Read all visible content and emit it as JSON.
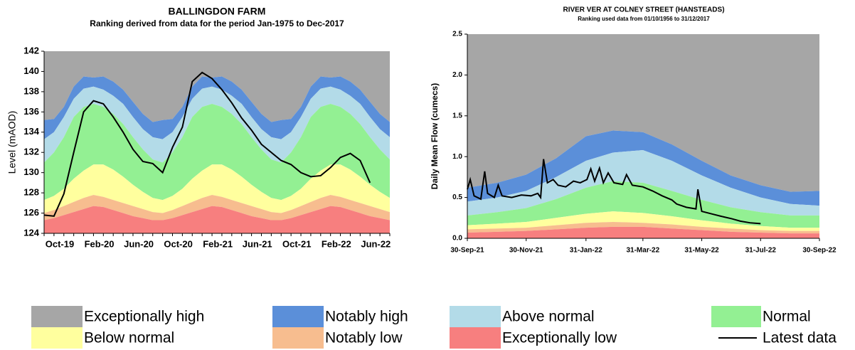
{
  "legend": {
    "bands": [
      {
        "name": "Exceptionally high",
        "color": "#a6a6a6"
      },
      {
        "name": "Notably high",
        "color": "#5b8fd9"
      },
      {
        "name": "Above normal",
        "color": "#b3dbe8"
      },
      {
        "name": "Normal",
        "color": "#93f093"
      },
      {
        "name": "Below normal",
        "color": "#ffff9e"
      },
      {
        "name": "Notably low",
        "color": "#f7bd8f"
      },
      {
        "name": "Exceptionally low",
        "color": "#f77f7f"
      }
    ],
    "line": {
      "name": "Latest data",
      "color": "#000000"
    }
  },
  "chart_data": [
    {
      "type": "area",
      "title": "BALLINGDON FARM",
      "subtitle": "Ranking derived from data for the period Jan-1975 to Dec-2017",
      "y_label": "Level (mAOD)",
      "categories": [
        "Oct-19",
        null,
        null,
        null,
        "Feb-20",
        null,
        null,
        null,
        "Jun-20",
        null,
        null,
        null,
        "Oct-20",
        null,
        null,
        null,
        "Feb-21",
        null,
        null,
        null,
        "Jun-21",
        null,
        null,
        null,
        "Oct-21",
        null,
        null,
        null,
        "Feb-22",
        null,
        null,
        null,
        "Jun-22",
        null,
        null,
        null
      ],
      "ylim": [
        124,
        142
      ],
      "yticks": [
        124,
        126,
        128,
        130,
        132,
        134,
        136,
        138,
        140,
        142
      ],
      "boundaries": [
        [
          135.2,
          135.3,
          136.5,
          138.5,
          139.5,
          139.4,
          139.5,
          139.0,
          138.2,
          137.0,
          135.8,
          135.0,
          135.2,
          135.3,
          136.5,
          138.5,
          139.5,
          139.4,
          139.5,
          139.0,
          138.2,
          137.0,
          135.8,
          135.0,
          135.2,
          135.3,
          136.5,
          138.5,
          139.5,
          139.4,
          139.5,
          139.0,
          138.2,
          137.0,
          135.8,
          135.0
        ],
        [
          133.3,
          134.0,
          135.5,
          137.3,
          138.3,
          138.5,
          138.2,
          137.6,
          136.8,
          135.5,
          134.3,
          133.5,
          133.3,
          134.0,
          135.5,
          137.3,
          138.3,
          138.5,
          138.2,
          137.6,
          136.8,
          135.5,
          134.3,
          133.5,
          133.3,
          134.0,
          135.5,
          137.3,
          138.3,
          138.5,
          138.2,
          137.6,
          136.8,
          135.5,
          134.3,
          133.5
        ],
        [
          131.0,
          132.0,
          133.5,
          135.5,
          136.5,
          136.8,
          136.5,
          135.8,
          134.8,
          133.5,
          132.3,
          131.3,
          131.0,
          132.0,
          133.5,
          135.5,
          136.5,
          136.8,
          136.5,
          135.8,
          134.8,
          133.5,
          132.3,
          131.3,
          131.0,
          132.0,
          133.5,
          135.5,
          136.5,
          136.8,
          136.5,
          135.8,
          134.8,
          133.5,
          132.3,
          131.3
        ],
        [
          127.3,
          127.7,
          128.4,
          129.4,
          130.2,
          130.8,
          130.8,
          130.3,
          129.6,
          128.8,
          128.1,
          127.5,
          127.3,
          127.7,
          128.4,
          129.4,
          130.2,
          130.8,
          130.8,
          130.3,
          129.6,
          128.8,
          128.1,
          127.5,
          127.3,
          127.7,
          128.4,
          129.4,
          130.2,
          130.8,
          130.8,
          130.3,
          129.6,
          128.8,
          128.1,
          127.5
        ],
        [
          126.0,
          126.3,
          126.7,
          127.1,
          127.5,
          127.8,
          127.6,
          127.3,
          127.0,
          126.7,
          126.4,
          126.1,
          126.0,
          126.3,
          126.7,
          127.1,
          127.5,
          127.8,
          127.6,
          127.3,
          127.0,
          126.7,
          126.4,
          126.1,
          126.0,
          126.3,
          126.7,
          127.1,
          127.5,
          127.8,
          127.6,
          127.3,
          127.0,
          126.7,
          126.4,
          126.1
        ],
        [
          125.3,
          125.5,
          125.8,
          126.1,
          126.4,
          126.7,
          126.6,
          126.3,
          126.0,
          125.7,
          125.5,
          125.3,
          125.3,
          125.5,
          125.8,
          126.1,
          126.4,
          126.7,
          126.6,
          126.3,
          126.0,
          125.7,
          125.5,
          125.3,
          125.3,
          125.5,
          125.8,
          126.1,
          126.4,
          126.7,
          126.6,
          126.3,
          126.0,
          125.7,
          125.5,
          125.3
        ]
      ],
      "latest": {
        "values": [
          125.8,
          125.7,
          127.9,
          132.0,
          136.0,
          137.1,
          136.8,
          135.5,
          134.0,
          132.3,
          131.1,
          130.9,
          130.0,
          132.5,
          134.5,
          139.0,
          139.9,
          139.3,
          138.2,
          136.9,
          135.4,
          134.2,
          132.8,
          132.0,
          131.2,
          130.8,
          130.0,
          129.6,
          129.7,
          130.5,
          131.5,
          131.9,
          131.2,
          129.0,
          null,
          null
        ]
      }
    },
    {
      "type": "area",
      "title": "RIVER VER AT COLNEY STREET (HANSTEADS)",
      "subtitle": "Ranking used data from 01/10/1956 to 31/12/2017",
      "y_label": "Daily Mean Flow (cumecs)",
      "xlim": [
        "2021-09-30",
        "2022-09-30"
      ],
      "xticks": [
        {
          "value": "2021-09-30",
          "label": "30-Sep-21"
        },
        {
          "value": "2021-11-30",
          "label": "30-Nov-21"
        },
        {
          "value": "2022-01-31",
          "label": "31-Jan-22"
        },
        {
          "value": "2022-03-31",
          "label": "31-Mar-22"
        },
        {
          "value": "2022-05-31",
          "label": "31-May-22"
        },
        {
          "value": "2022-07-31",
          "label": "31-Jul-22"
        },
        {
          "value": "2022-09-30",
          "label": "30-Sep-22"
        }
      ],
      "ylim": [
        0,
        2.5
      ],
      "yticks": [
        {
          "value": 0,
          "label": "0.0"
        },
        0.5,
        {
          "value": 1,
          "label": "1.0"
        },
        1.5,
        {
          "value": 2,
          "label": "2.0"
        },
        2.5
      ],
      "x": [
        "2021-09-30",
        "2021-10-31",
        "2021-11-30",
        "2021-12-31",
        "2022-01-31",
        "2022-02-28",
        "2022-03-31",
        "2022-04-30",
        "2022-05-31",
        "2022-06-30",
        "2022-07-31",
        "2022-08-31",
        "2022-09-30"
      ],
      "boundaries": [
        [
          0.62,
          0.68,
          0.78,
          0.98,
          1.25,
          1.32,
          1.3,
          1.15,
          0.95,
          0.77,
          0.65,
          0.57,
          0.58
        ],
        [
          0.45,
          0.5,
          0.58,
          0.75,
          0.95,
          1.05,
          1.08,
          0.95,
          0.77,
          0.62,
          0.5,
          0.42,
          0.4
        ],
        [
          0.28,
          0.32,
          0.37,
          0.48,
          0.62,
          0.7,
          0.68,
          0.58,
          0.47,
          0.38,
          0.32,
          0.28,
          0.28
        ],
        [
          0.16,
          0.18,
          0.2,
          0.25,
          0.3,
          0.33,
          0.31,
          0.27,
          0.22,
          0.18,
          0.15,
          0.13,
          0.13
        ],
        [
          0.11,
          0.12,
          0.13,
          0.16,
          0.19,
          0.2,
          0.19,
          0.17,
          0.14,
          0.12,
          0.1,
          0.09,
          0.09
        ],
        [
          0.07,
          0.08,
          0.09,
          0.11,
          0.13,
          0.14,
          0.14,
          0.12,
          0.1,
          0.08,
          0.07,
          0.06,
          0.06
        ]
      ],
      "latest": {
        "x": [
          "2021-09-30",
          "2021-10-03",
          "2021-10-07",
          "2021-10-14",
          "2021-10-18",
          "2021-10-21",
          "2021-10-28",
          "2021-11-01",
          "2021-11-05",
          "2021-11-15",
          "2021-11-25",
          "2021-12-05",
          "2021-12-12",
          "2021-12-15",
          "2021-12-18",
          "2021-12-22",
          "2021-12-28",
          "2022-01-02",
          "2022-01-10",
          "2022-01-18",
          "2022-01-25",
          "2022-02-01",
          "2022-02-05",
          "2022-02-09",
          "2022-02-14",
          "2022-02-18",
          "2022-02-23",
          "2022-03-01",
          "2022-03-10",
          "2022-03-14",
          "2022-03-20",
          "2022-03-31",
          "2022-04-10",
          "2022-04-20",
          "2022-04-30",
          "2022-05-05",
          "2022-05-15",
          "2022-05-25",
          "2022-05-27",
          "2022-05-31",
          "2022-06-10",
          "2022-06-20",
          "2022-07-01",
          "2022-07-10",
          "2022-07-20",
          "2022-07-31"
        ],
        "values": [
          0.6,
          0.72,
          0.52,
          0.48,
          0.82,
          0.55,
          0.5,
          0.65,
          0.52,
          0.5,
          0.53,
          0.52,
          0.55,
          0.5,
          0.97,
          0.68,
          0.72,
          0.65,
          0.63,
          0.7,
          0.68,
          0.72,
          0.85,
          0.7,
          0.86,
          0.68,
          0.8,
          0.68,
          0.66,
          0.78,
          0.65,
          0.63,
          0.58,
          0.52,
          0.47,
          0.42,
          0.38,
          0.36,
          0.6,
          0.33,
          0.3,
          0.27,
          0.24,
          0.21,
          0.19,
          0.18
        ]
      }
    }
  ]
}
